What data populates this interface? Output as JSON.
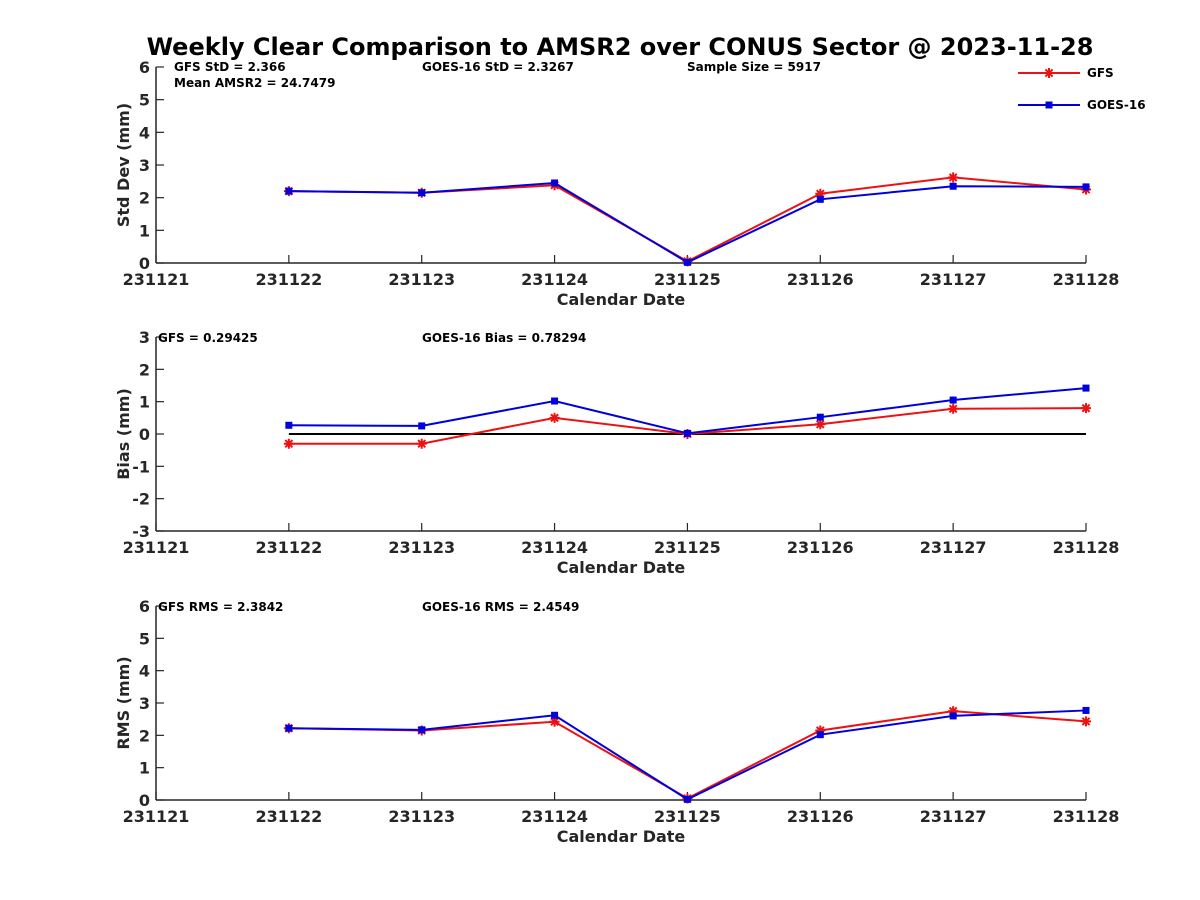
{
  "title": "Weekly Clear Comparison to AMSR2 over CONUS Sector @ 2023-11-28",
  "legend": {
    "placement": "top-right",
    "items": [
      {
        "name": "GFS",
        "color": "#ee1111",
        "marker": "asterisk"
      },
      {
        "name": "GOES-16",
        "color": "#0000dd",
        "marker": "square"
      }
    ]
  },
  "chart_data": [
    {
      "type": "line",
      "xlabel": "Calendar Date",
      "ylabel": "Std Dev (mm)",
      "x_ticks": [
        "231121",
        "231122",
        "231123",
        "231124",
        "231125",
        "231126",
        "231127",
        "231128"
      ],
      "ylim": [
        0,
        6
      ],
      "y_ticks": [
        "0",
        "1",
        "2",
        "3",
        "4",
        "5",
        "6"
      ],
      "zero_line": false,
      "grid": false,
      "annotations": [
        "GFS StD = 2.366",
        "GOES-16 StD = 2.3267",
        "Sample Size = 5917",
        "Mean AMSR2 = 24.7479"
      ],
      "series": [
        {
          "name": "GFS",
          "values": [
            2.2,
            2.15,
            2.38,
            0.05,
            2.12,
            2.62,
            2.25
          ]
        },
        {
          "name": "GOES-16",
          "values": [
            2.2,
            2.15,
            2.45,
            0.02,
            1.95,
            2.35,
            2.33
          ]
        }
      ]
    },
    {
      "type": "line",
      "xlabel": "Calendar Date",
      "ylabel": "Bias (mm)",
      "x_ticks": [
        "231121",
        "231122",
        "231123",
        "231124",
        "231125",
        "231126",
        "231127",
        "231128"
      ],
      "ylim": [
        -3,
        3
      ],
      "y_ticks": [
        "-3",
        "-2",
        "-1",
        "0",
        "1",
        "2",
        "3"
      ],
      "zero_line": true,
      "grid": false,
      "annotations": [
        "GFS = 0.29425",
        "GOES-16 Bias  = 0.78294"
      ],
      "series": [
        {
          "name": "GFS",
          "values": [
            -0.3,
            -0.3,
            0.5,
            0.0,
            0.3,
            0.78,
            0.8
          ]
        },
        {
          "name": "GOES-16",
          "values": [
            0.27,
            0.25,
            1.02,
            0.02,
            0.52,
            1.05,
            1.42
          ]
        }
      ]
    },
    {
      "type": "line",
      "xlabel": "Calendar Date",
      "ylabel": "RMS (mm)",
      "x_ticks": [
        "231121",
        "231122",
        "231123",
        "231124",
        "231125",
        "231126",
        "231127",
        "231128"
      ],
      "ylim": [
        0,
        6
      ],
      "y_ticks": [
        "0",
        "1",
        "2",
        "3",
        "4",
        "5",
        "6"
      ],
      "zero_line": false,
      "grid": false,
      "annotations": [
        "GFS RMS = 2.3842",
        "GOES-16 RMS = 2.4549"
      ],
      "series": [
        {
          "name": "GFS",
          "values": [
            2.22,
            2.15,
            2.42,
            0.05,
            2.15,
            2.75,
            2.43
          ]
        },
        {
          "name": "GOES-16",
          "values": [
            2.22,
            2.17,
            2.62,
            0.02,
            2.02,
            2.6,
            2.77
          ]
        }
      ]
    }
  ]
}
